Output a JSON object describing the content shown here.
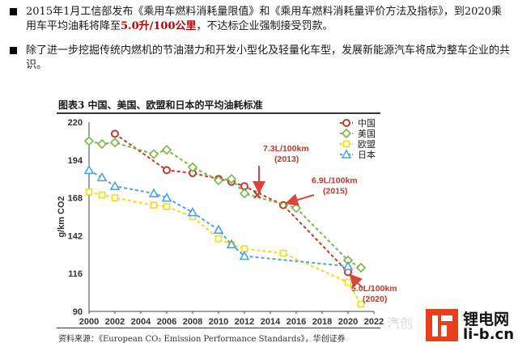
{
  "paragraph1": {
    "before": "2015年1月工信部发布《乘用车燃料消耗量限值》和《乘用车燃料消耗量评价方法及指标》，到2020乘用车平均油耗将降至",
    "highlight": "5.0升/100公里",
    "after": "，不达标企业强制接受罚款。"
  },
  "paragraph2": {
    "text": "除了进一步挖掘传统内燃机的节油潜力和开发小型化及轻量化车型，发展新能源汽车将成为整车企业的共识。"
  },
  "figure": {
    "title": "图表3 中国、美国、欧盟和日本的平均油耗标准",
    "source": "资料来源：《European CO₂ Emission Performance Standards》，华创证券"
  },
  "watermark": {
    "faded_text": "汽创",
    "logo_cn": "锂电网",
    "logo_url": "li-b.cn",
    "logo_color": "#e8401c"
  },
  "chart_data": {
    "type": "line",
    "ylabel": "g/km CO2",
    "xlabel": "",
    "x_ticks": [
      2000,
      2002,
      2004,
      2006,
      2008,
      2010,
      2012,
      2014,
      2016,
      2018,
      2020,
      2022
    ],
    "y_ticks": [
      90,
      116,
      142,
      168,
      194,
      220
    ],
    "xlim": [
      2000,
      2022
    ],
    "ylim": [
      90,
      220
    ],
    "legend_position": "top-right",
    "series": [
      {
        "name": "中国",
        "color": "#c0392b",
        "marker": "circle",
        "points": [
          [
            2002,
            212
          ],
          [
            2006,
            187
          ],
          [
            2008,
            185
          ],
          [
            2010,
            181
          ],
          [
            2011,
            179
          ],
          [
            2012,
            176
          ],
          [
            2015,
            163
          ],
          [
            2020,
            117
          ]
        ]
      },
      {
        "name": "美国",
        "color": "#7ab648",
        "marker": "diamond",
        "points": [
          [
            2000,
            207
          ],
          [
            2001,
            205
          ],
          [
            2002,
            206
          ],
          [
            2005,
            198
          ],
          [
            2006,
            201
          ],
          [
            2008,
            189
          ],
          [
            2010,
            180
          ],
          [
            2011,
            181
          ],
          [
            2012,
            171
          ],
          [
            2016,
            161
          ],
          [
            2020,
            125
          ],
          [
            2021,
            120
          ]
        ]
      },
      {
        "name": "欧盟",
        "color": "#f2d91e",
        "marker": "square",
        "points": [
          [
            2000,
            172
          ],
          [
            2001,
            170
          ],
          [
            2002,
            168
          ],
          [
            2005,
            163
          ],
          [
            2006,
            162
          ],
          [
            2008,
            155
          ],
          [
            2010,
            140
          ],
          [
            2011,
            136
          ],
          [
            2012,
            133
          ],
          [
            2015,
            130
          ],
          [
            2020,
            110
          ],
          [
            2021,
            95
          ]
        ]
      },
      {
        "name": "日本",
        "color": "#4fa3d9",
        "marker": "triangle",
        "points": [
          [
            2000,
            187
          ],
          [
            2001,
            182
          ],
          [
            2002,
            176
          ],
          [
            2005,
            171
          ],
          [
            2006,
            168
          ],
          [
            2008,
            158
          ],
          [
            2010,
            146
          ],
          [
            2011,
            136
          ],
          [
            2012,
            128
          ],
          [
            2020,
            121
          ]
        ]
      }
    ],
    "annotations": [
      {
        "label": "7.3L/100km",
        "sublabel": "(2013)",
        "x": 2013,
        "y": 170
      },
      {
        "label": "6.9L/100km",
        "sublabel": "(2015)",
        "x": 2015,
        "y": 163
      },
      {
        "label": "5.0L/100km",
        "sublabel": "(2020)",
        "x": 2020,
        "y": 117
      }
    ]
  }
}
